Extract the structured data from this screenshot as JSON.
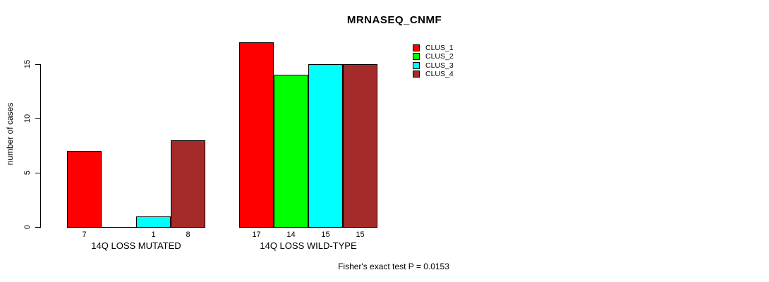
{
  "chart_data": {
    "type": "bar",
    "title": "MRNASEQ_CNMF",
    "ylabel": "number of cases",
    "xlabel": "",
    "yticks": [
      0,
      5,
      10,
      15
    ],
    "ylim": [
      0,
      17
    ],
    "grid": false,
    "legend_position": "top-right",
    "categories": [
      "14Q LOSS MUTATED",
      "14Q LOSS WILD-TYPE"
    ],
    "series": [
      {
        "name": "CLUS_1",
        "color": "#FF0000",
        "values": [
          7,
          17
        ]
      },
      {
        "name": "CLUS_2",
        "color": "#00FF00",
        "values": [
          0,
          14
        ]
      },
      {
        "name": "CLUS_3",
        "color": "#00FFFF",
        "values": [
          1,
          15
        ]
      },
      {
        "name": "CLUS_4",
        "color": "#A52A2A",
        "values": [
          8,
          15
        ]
      }
    ],
    "bar_value_labels": [
      [
        "7",
        "",
        "1",
        "8"
      ],
      [
        "17",
        "14",
        "15",
        "15"
      ]
    ],
    "annotation": "Fisher's exact test P = 0.0153",
    "colors": {
      "background": "#FFFFFF",
      "axis": "#000000",
      "text": "#000000"
    }
  }
}
